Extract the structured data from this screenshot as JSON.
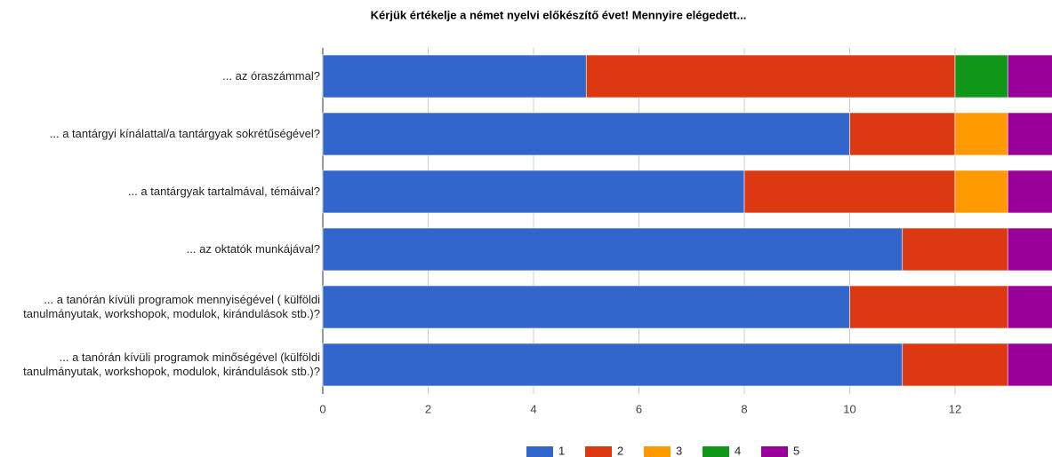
{
  "chart_data": {
    "type": "stacked-bar-horizontal",
    "title": "Kérjük értékelje a német nyelvi előkészítő évet! Mennyire elégedett...",
    "categories": [
      "... az óraszámmal?",
      "... a tantárgyi kínálattal/a tantárgyak sokrétűségével?",
      "... a tantárgyak tartalmával, témáival?",
      "... az oktatók munkájával?",
      "... a tanórán kívüli programok mennyiségével ( külföldi tanulmányutak, workshopok, modulok, kirándulások stb.)?",
      "... a tanórán kívüli programok minőségével (külföldi tanulmányutak, workshopok, modulok, kirándulások stb.)?"
    ],
    "series": [
      {
        "name": "1",
        "color": "#3366cc",
        "values": [
          5,
          10,
          8,
          11,
          10,
          11
        ]
      },
      {
        "name": "2",
        "color": "#dc3912",
        "values": [
          7,
          2,
          4,
          2,
          3,
          2
        ]
      },
      {
        "name": "3",
        "color": "#ff9900",
        "values": [
          0,
          1,
          1,
          0,
          0,
          0
        ]
      },
      {
        "name": "4",
        "color": "#109618",
        "values": [
          1,
          0,
          0,
          0,
          0,
          0
        ]
      },
      {
        "name": "5",
        "color": "#990099",
        "values": [
          1,
          1,
          1,
          1,
          1,
          1
        ]
      }
    ],
    "xlim": [
      0,
      14
    ],
    "xticks": [
      0,
      2,
      4,
      6,
      8,
      10,
      12
    ],
    "grid": true,
    "legend": "bottom"
  }
}
